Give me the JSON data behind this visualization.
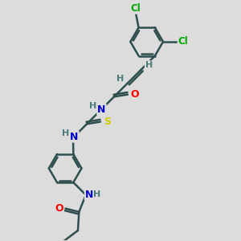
{
  "background_color": "#dcdcdc",
  "bond_color": "#2f4f4f",
  "atom_colors": {
    "O": "#ff0000",
    "N": "#0000cd",
    "S": "#cccc00",
    "Cl": "#00aa00",
    "C": "#2f4f4f",
    "H": "#4a7a7a"
  },
  "figsize": [
    3.0,
    3.0
  ],
  "dpi": 100
}
